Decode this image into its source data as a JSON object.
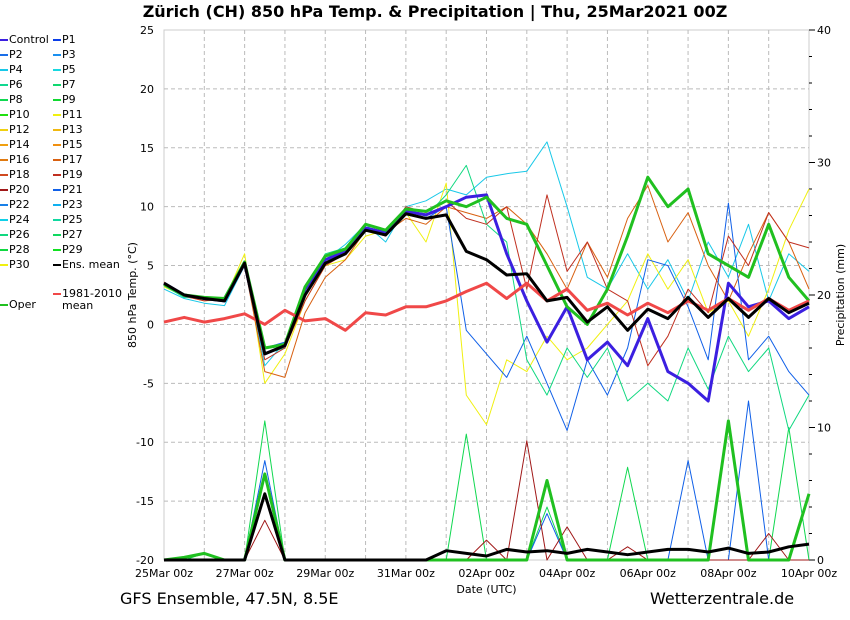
{
  "chart_data": {
    "type": "line",
    "title": "Zürich  (CH)  850 hPa Temp. & Precipitation | Thu, 25Mar2021 00Z",
    "xlabel": "Date (UTC)",
    "ylabel": "850 hPa Temp. (°C)",
    "ylabel_right": "Precipitation (mm)",
    "x_days_from_start": [
      0,
      0.5,
      1,
      1.5,
      2,
      2.5,
      3,
      3.5,
      4,
      4.5,
      5,
      5.5,
      6,
      6.5,
      7,
      7.5,
      8,
      8.5,
      9,
      9.5,
      10,
      10.5,
      11,
      11.5,
      12,
      12.5,
      13,
      13.5,
      14,
      14.5,
      15,
      15.5,
      16
    ],
    "xticks": [
      "25Mar 00z",
      "27Mar 00z",
      "29Mar 00z",
      "31Mar 00z",
      "02Apr 00z",
      "04Apr 00z",
      "06Apr 00z",
      "08Apr 00z",
      "10Apr 00z"
    ],
    "ylim": [
      -20,
      25
    ],
    "yticks": [
      25,
      20,
      15,
      10,
      5,
      0,
      -5,
      -10,
      -15,
      -20
    ],
    "ylim_right": [
      0,
      40
    ],
    "yticks_right": [
      40,
      30,
      20,
      10,
      0
    ],
    "grid": true,
    "legend_position": "left-outside",
    "legend": [
      {
        "label": "Control",
        "color": "#3b1fe0"
      },
      {
        "label": "P1",
        "color": "#0a3ee8"
      },
      {
        "label": "P2",
        "color": "#1a6ee8"
      },
      {
        "label": "P3",
        "color": "#1a90f0"
      },
      {
        "label": "P4",
        "color": "#18c8e8"
      },
      {
        "label": "P5",
        "color": "#18d8e0"
      },
      {
        "label": "P6",
        "color": "#10d890"
      },
      {
        "label": "P7",
        "color": "#10d870"
      },
      {
        "label": "P8",
        "color": "#10d850"
      },
      {
        "label": "P9",
        "color": "#10d830"
      },
      {
        "label": "P10",
        "color": "#20e010"
      },
      {
        "label": "P11",
        "color": "#f0f010"
      },
      {
        "label": "P12",
        "color": "#f0d010"
      },
      {
        "label": "P13",
        "color": "#f0b810"
      },
      {
        "label": "P14",
        "color": "#f0a010"
      },
      {
        "label": "P15",
        "color": "#f09010"
      },
      {
        "label": "P16",
        "color": "#e07a10"
      },
      {
        "label": "P17",
        "color": "#d86010"
      },
      {
        "label": "P18",
        "color": "#d04a20"
      },
      {
        "label": "P19",
        "color": "#c03020"
      },
      {
        "label": "P20",
        "color": "#a01818"
      },
      {
        "label": "P21",
        "color": "#1060e8"
      },
      {
        "label": "P22",
        "color": "#1880e8"
      },
      {
        "label": "P23",
        "color": "#10b0f0"
      },
      {
        "label": "P24",
        "color": "#10d0e8"
      },
      {
        "label": "P25",
        "color": "#10d8a0"
      },
      {
        "label": "P26",
        "color": "#10d880"
      },
      {
        "label": "P27",
        "color": "#10d860"
      },
      {
        "label": "P28",
        "color": "#10d840"
      },
      {
        "label": "P29",
        "color": "#10e020"
      },
      {
        "label": "P30",
        "color": "#f0f010"
      },
      {
        "label": "Ens. mean",
        "color": "#000000"
      }
    ],
    "legend_clim": {
      "label1": "1981-2010",
      "label2": "mean",
      "color": "#f04848"
    },
    "legend_oper": {
      "label": "Oper",
      "color": "#20c020"
    },
    "temperature_series": [
      {
        "name": "P4",
        "color": "#18c8e8",
        "values": [
          3.0,
          2.2,
          1.8,
          1.6,
          5.0,
          -3.5,
          -1.5,
          3.0,
          5.5,
          6.8,
          8.5,
          7.0,
          10.0,
          10.5,
          11.5,
          11.0,
          12.5,
          12.8,
          13.0,
          15.5,
          10.0,
          4.0,
          3.0,
          6.0,
          3.0,
          5.5,
          2.0,
          7.0,
          4.0,
          8.5,
          2.0,
          6.0,
          4.5
        ]
      },
      {
        "name": "P11",
        "color": "#f0f010",
        "values": [
          3.2,
          2.4,
          2.0,
          2.1,
          6.0,
          -5.0,
          -2.5,
          2.0,
          5.0,
          5.5,
          7.5,
          8.0,
          9.5,
          7.0,
          12.0,
          -6.0,
          -8.5,
          -3.0,
          -4.0,
          -1.0,
          -3.0,
          -2.0,
          0.0,
          2.0,
          6.0,
          3.0,
          5.5,
          1.0,
          2.0,
          -1.0,
          3.0,
          8.0,
          11.5
        ]
      },
      {
        "name": "P17",
        "color": "#d86010",
        "values": [
          3.6,
          2.5,
          2.3,
          2.2,
          5.0,
          -4.0,
          -4.5,
          1.0,
          4.0,
          5.5,
          8.0,
          7.8,
          9.0,
          8.5,
          10.0,
          9.5,
          9.0,
          10.0,
          8.5,
          6.0,
          3.0,
          7.0,
          4.0,
          9.0,
          11.8,
          7.0,
          9.5,
          5.0,
          2.0,
          6.0,
          9.5,
          7.0,
          3.0
        ]
      },
      {
        "name": "P21",
        "color": "#1060e8",
        "values": [
          3.4,
          2.6,
          2.1,
          2.0,
          5.2,
          -2.0,
          -1.5,
          2.5,
          5.5,
          6.0,
          8.2,
          7.5,
          9.3,
          9.0,
          10.0,
          -0.5,
          -2.5,
          -4.5,
          -1.0,
          -5.0,
          -9.0,
          -3.0,
          -6.0,
          -2.0,
          5.5,
          5.0,
          1.5,
          -3.0,
          10.3,
          -3.0,
          -1.0,
          -4.0,
          -6.0
        ]
      },
      {
        "name": "P26",
        "color": "#10d880",
        "values": [
          3.3,
          2.3,
          2.2,
          2.1,
          5.3,
          -2.5,
          -2.0,
          3.0,
          6.0,
          6.5,
          8.5,
          8.0,
          9.8,
          9.2,
          11.0,
          13.5,
          8.5,
          7.0,
          -3.0,
          -6.0,
          -2.0,
          -4.5,
          -2.0,
          -6.5,
          -5.0,
          -6.5,
          -2.0,
          -5.5,
          -1.0,
          -4.0,
          -2.0,
          -9.0,
          -6.0
        ]
      },
      {
        "name": "P19",
        "color": "#c03020",
        "values": [
          3.5,
          2.4,
          2.0,
          2.2,
          5.0,
          -3.0,
          -2.0,
          2.0,
          5.0,
          6.0,
          8.0,
          7.5,
          10.0,
          9.5,
          10.5,
          9.0,
          8.5,
          10.0,
          3.0,
          11.0,
          4.5,
          7.0,
          3.0,
          2.0,
          -3.5,
          -1.0,
          3.0,
          1.0,
          7.5,
          5.0,
          9.5,
          7.0,
          6.5
        ]
      },
      {
        "name": "Control",
        "color": "#3b1fe0",
        "width": 3,
        "values": [
          3.5,
          2.5,
          2.2,
          2.0,
          5.2,
          -2.5,
          -1.8,
          3.0,
          5.5,
          6.2,
          8.2,
          7.8,
          9.6,
          9.3,
          10.0,
          10.8,
          11.0,
          6.0,
          2.0,
          -1.5,
          1.5,
          -3.0,
          -1.5,
          -3.5,
          0.5,
          -4.0,
          -5.0,
          -6.5,
          3.5,
          1.5,
          2.0,
          0.5,
          1.5
        ]
      },
      {
        "name": "Oper",
        "color": "#20c020",
        "width": 3,
        "values": [
          3.4,
          2.5,
          2.3,
          2.2,
          5.3,
          -2.0,
          -1.7,
          3.2,
          5.8,
          6.4,
          8.5,
          8.0,
          9.8,
          9.6,
          10.5,
          10.0,
          10.8,
          9.0,
          8.5,
          5.0,
          1.5,
          0.0,
          3.0,
          7.5,
          12.5,
          10.0,
          11.5,
          6.0,
          5.0,
          4.0,
          8.5,
          4.0,
          2.0
        ]
      },
      {
        "name": "1981-2010 mean",
        "color": "#f04848",
        "width": 3,
        "values": [
          0.2,
          0.6,
          0.2,
          0.5,
          0.9,
          0.0,
          1.2,
          0.3,
          0.5,
          -0.5,
          1.0,
          0.8,
          1.5,
          1.5,
          2.0,
          2.8,
          3.5,
          2.2,
          3.5,
          2.0,
          3.0,
          1.2,
          1.8,
          0.8,
          1.8,
          1.0,
          2.0,
          1.2,
          2.2,
          1.2,
          2.2,
          1.2,
          2.0
        ]
      },
      {
        "name": "Ens. mean",
        "color": "#000000",
        "width": 3,
        "values": [
          3.5,
          2.5,
          2.2,
          2.0,
          5.2,
          -2.5,
          -1.8,
          2.5,
          5.2,
          6.0,
          8.0,
          7.6,
          9.4,
          9.0,
          9.3,
          6.2,
          5.5,
          4.2,
          4.3,
          2.0,
          2.3,
          0.2,
          1.5,
          -0.5,
          1.3,
          0.5,
          2.3,
          0.6,
          2.2,
          0.6,
          2.2,
          1.0,
          1.8
        ]
      }
    ],
    "precipitation_series": [
      {
        "name": "P8",
        "color": "#10d850",
        "values": [
          0,
          0,
          0.5,
          0,
          0,
          10.5,
          0,
          0,
          0,
          0,
          0,
          0,
          0,
          0,
          0,
          9.5,
          0,
          0,
          0,
          4,
          0,
          0,
          0,
          7,
          0,
          0,
          0,
          0,
          0,
          0,
          0,
          10,
          0
        ]
      },
      {
        "name": "P21",
        "color": "#1060e8",
        "values": [
          0,
          0,
          0,
          0,
          0,
          7.5,
          0,
          0,
          0,
          0,
          0,
          0,
          0,
          0,
          0,
          0,
          0,
          0,
          0,
          3.5,
          0,
          0,
          0,
          0,
          0,
          0,
          7.5,
          0,
          0,
          12,
          0,
          0,
          0
        ]
      },
      {
        "name": "P20",
        "color": "#a01818",
        "values": [
          0,
          0,
          0,
          0,
          0,
          3,
          0,
          0,
          0,
          0,
          0,
          0,
          0,
          0,
          0,
          0,
          1.5,
          0,
          9,
          0,
          2.5,
          0,
          0,
          1,
          0,
          0,
          0,
          0,
          0,
          0,
          2,
          0,
          0
        ]
      },
      {
        "name": "Oper",
        "color": "#20c020",
        "width": 3,
        "values": [
          0,
          0.2,
          0.5,
          0,
          0,
          6.5,
          0,
          0,
          0,
          0,
          0,
          0,
          0,
          0,
          0,
          0,
          0,
          0,
          0,
          6,
          0,
          0,
          0,
          0,
          0,
          0,
          0,
          0,
          10.5,
          0,
          0,
          0,
          5
        ]
      },
      {
        "name": "Ens. mean",
        "color": "#000000",
        "width": 3,
        "values": [
          0,
          0,
          0,
          0,
          0,
          5,
          0,
          0,
          0,
          0,
          0,
          0,
          0,
          0,
          0.7,
          0.5,
          0.3,
          0.8,
          0.6,
          0.7,
          0.5,
          0.8,
          0.6,
          0.4,
          0.6,
          0.8,
          0.8,
          0.6,
          0.9,
          0.5,
          0.6,
          1.0,
          1.2
        ]
      }
    ]
  },
  "footer": {
    "source": "GFS Ensemble, 47.5N, 8.5E",
    "site": "Wetterzentrale.de"
  }
}
